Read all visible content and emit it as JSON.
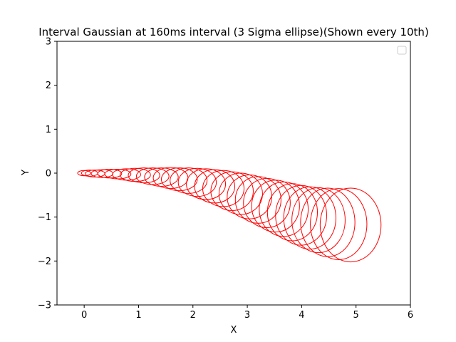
{
  "chart_data": {
    "type": "scatter",
    "title": "Interval Gaussian at 160ms interval (3 Sigma ellipse)(Shown every 10th)",
    "xlabel": "X",
    "ylabel": "Y",
    "xlim": [
      -0.5,
      6
    ],
    "ylim": [
      -3,
      3
    ],
    "xticks": [
      "0",
      "1",
      "2",
      "3",
      "4",
      "5",
      "6"
    ],
    "yticks": [
      "−3",
      "−2",
      "−1",
      "0",
      "1",
      "2",
      "3"
    ],
    "grid": false,
    "legend": {
      "placement": "top-right",
      "entries": []
    },
    "series_color": "#ff0000",
    "ellipses": [
      {
        "cx": 0.0,
        "cy": 0.0,
        "rx": 0.12,
        "ry": 0.06
      },
      {
        "cx": 0.1,
        "cy": 0.0,
        "rx": 0.15,
        "ry": 0.07
      },
      {
        "cx": 0.2,
        "cy": -0.01,
        "rx": 0.18,
        "ry": 0.08
      },
      {
        "cx": 0.33,
        "cy": -0.01,
        "rx": 0.2,
        "ry": 0.09
      },
      {
        "cx": 0.47,
        "cy": -0.01,
        "rx": 0.22,
        "ry": 0.1
      },
      {
        "cx": 0.62,
        "cy": -0.02,
        "rx": 0.24,
        "ry": 0.11
      },
      {
        "cx": 0.78,
        "cy": -0.03,
        "rx": 0.26,
        "ry": 0.13
      },
      {
        "cx": 0.94,
        "cy": -0.04,
        "rx": 0.28,
        "ry": 0.15
      },
      {
        "cx": 1.1,
        "cy": -0.05,
        "rx": 0.29,
        "ry": 0.17
      },
      {
        "cx": 1.26,
        "cy": -0.07,
        "rx": 0.3,
        "ry": 0.19
      },
      {
        "cx": 1.42,
        "cy": -0.09,
        "rx": 0.31,
        "ry": 0.21
      },
      {
        "cx": 1.59,
        "cy": -0.11,
        "rx": 0.32,
        "ry": 0.24
      },
      {
        "cx": 1.75,
        "cy": -0.14,
        "rx": 0.33,
        "ry": 0.26
      },
      {
        "cx": 1.92,
        "cy": -0.17,
        "rx": 0.34,
        "ry": 0.29
      },
      {
        "cx": 2.08,
        "cy": -0.21,
        "rx": 0.35,
        "ry": 0.32
      },
      {
        "cx": 2.24,
        "cy": -0.25,
        "rx": 0.36,
        "ry": 0.35
      },
      {
        "cx": 2.4,
        "cy": -0.3,
        "rx": 0.37,
        "ry": 0.38
      },
      {
        "cx": 2.56,
        "cy": -0.35,
        "rx": 0.38,
        "ry": 0.41
      },
      {
        "cx": 2.72,
        "cy": -0.41,
        "rx": 0.39,
        "ry": 0.44
      },
      {
        "cx": 2.88,
        "cy": -0.47,
        "rx": 0.4,
        "ry": 0.47
      },
      {
        "cx": 3.04,
        "cy": -0.54,
        "rx": 0.41,
        "ry": 0.5
      },
      {
        "cx": 3.2,
        "cy": -0.61,
        "rx": 0.42,
        "ry": 0.53
      },
      {
        "cx": 3.36,
        "cy": -0.68,
        "rx": 0.43,
        "ry": 0.56
      },
      {
        "cx": 3.52,
        "cy": -0.75,
        "rx": 0.44,
        "ry": 0.59
      },
      {
        "cx": 3.67,
        "cy": -0.82,
        "rx": 0.45,
        "ry": 0.62
      },
      {
        "cx": 3.83,
        "cy": -0.89,
        "rx": 0.46,
        "ry": 0.65
      },
      {
        "cx": 3.99,
        "cy": -0.96,
        "rx": 0.47,
        "ry": 0.68
      },
      {
        "cx": 4.15,
        "cy": -1.02,
        "rx": 0.48,
        "ry": 0.71
      },
      {
        "cx": 4.31,
        "cy": -1.07,
        "rx": 0.49,
        "ry": 0.74
      },
      {
        "cx": 4.48,
        "cy": -1.12,
        "rx": 0.5,
        "ry": 0.78
      },
      {
        "cx": 4.68,
        "cy": -1.16,
        "rx": 0.52,
        "ry": 0.81
      },
      {
        "cx": 4.9,
        "cy": -1.18,
        "rx": 0.56,
        "ry": 0.84
      }
    ]
  }
}
